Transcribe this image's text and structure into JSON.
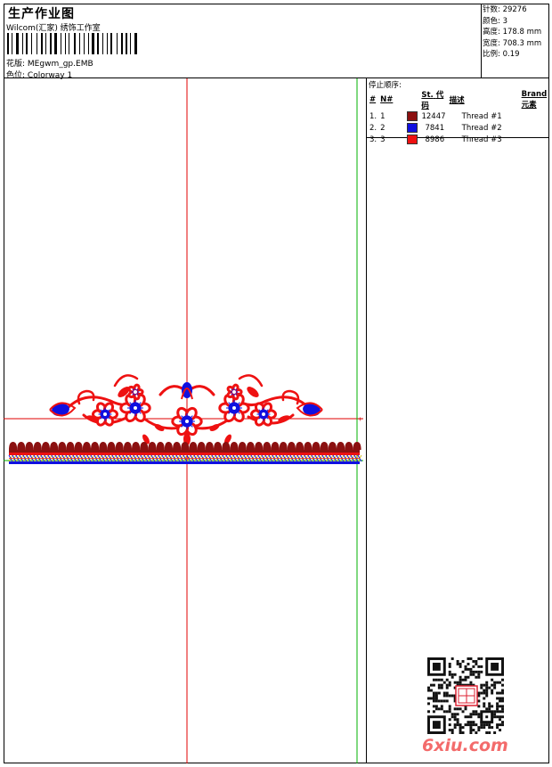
{
  "header": {
    "title": "生产作业图",
    "subtitle": "Wilcom(汇家) 绣饰工作室",
    "design_label": "花版:",
    "design_value": "MEgwm_gp.EMB",
    "colorway_label": "色位:",
    "colorway_value": "Colorway 1"
  },
  "stats": [
    {
      "label": "针数:",
      "value": "29276"
    },
    {
      "label": "颜色:",
      "value": "3"
    },
    {
      "label": "高度:",
      "value": "178.8 mm"
    },
    {
      "label": "宽度:",
      "value": "708.3 mm"
    },
    {
      "label": "比例:",
      "value": "0.19"
    }
  ],
  "stop_sequence": {
    "title": "停止顺序:",
    "columns": [
      "#",
      "N#",
      "St.",
      "代码",
      "描述",
      "Brand",
      "元素"
    ],
    "rows": [
      {
        "num": "1.",
        "n": "1",
        "color": "#8b1010",
        "code": "12447",
        "desc": "Thread #1"
      },
      {
        "num": "2.",
        "n": "2",
        "color": "#1010e0",
        "code": "7841",
        "desc": "Thread #2"
      },
      {
        "num": "3.",
        "n": "3",
        "color": "#ee1111",
        "code": "8986",
        "desc": "Thread #3"
      }
    ]
  },
  "colors": {
    "thread1": "#8b1010",
    "thread2": "#1010e0",
    "thread3": "#ee1111",
    "guide_red": "#e00000",
    "guide_green": "#00b000",
    "watermark": "#f36b6b"
  },
  "watermark": "6xiu.com",
  "icons": {
    "qr": "qr-code-icon",
    "seal": "seal-stamp-icon"
  }
}
